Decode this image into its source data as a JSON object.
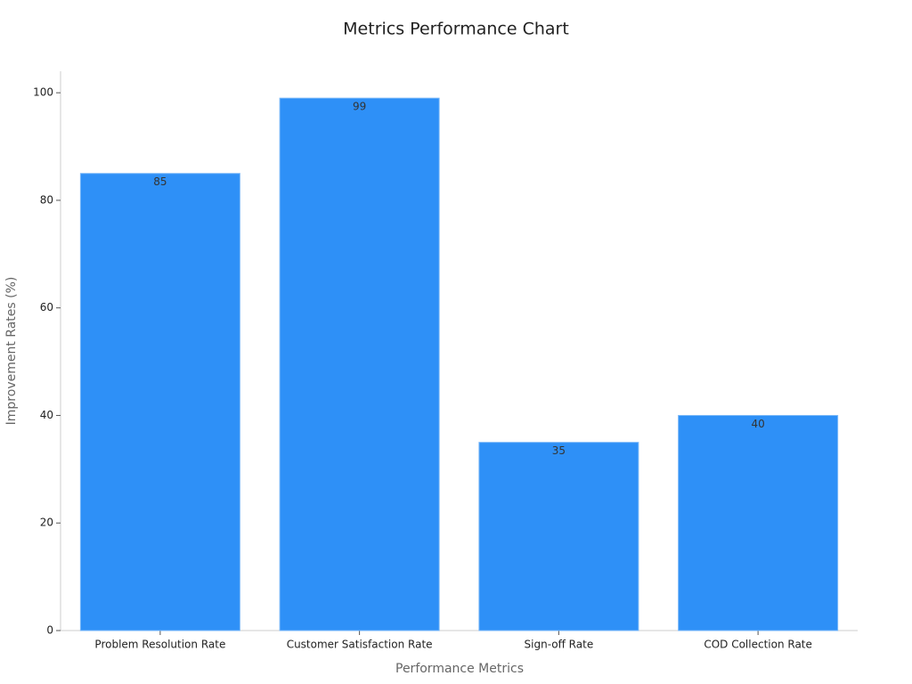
{
  "chart_data": {
    "type": "bar",
    "title": "Metrics Performance Chart",
    "x_label": "Performance Metrics",
    "y_label": "Improvement Rates (%)",
    "categories": [
      "Problem Resolution Rate",
      "Customer Satisfaction Rate",
      "Sign-off Rate",
      "COD Collection Rate"
    ],
    "values": [
      85,
      99,
      35,
      40
    ],
    "color": "#2e90f7",
    "ylim": [
      0,
      104
    ],
    "yticks": [
      0,
      20,
      40,
      60,
      80,
      100
    ],
    "grid": false
  }
}
